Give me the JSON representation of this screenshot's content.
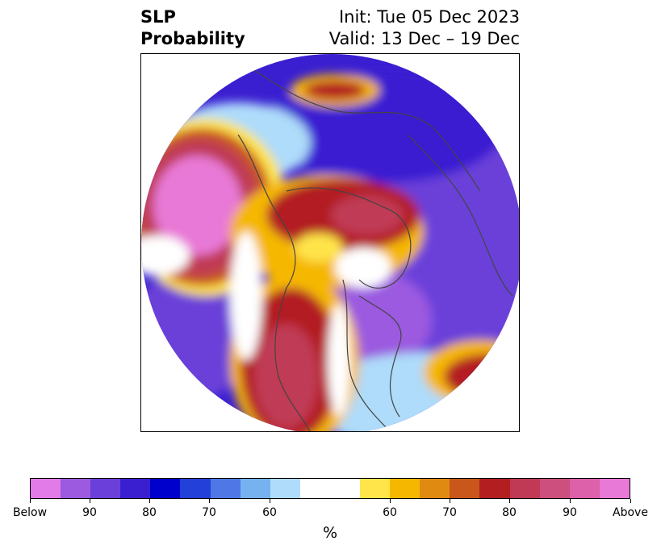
{
  "title": {
    "left_line1": "SLP",
    "left_line2": "Probability",
    "right_line1": "Init: Tue 05 Dec 2023",
    "right_line2": "Valid: 13 Dec – 19 Dec"
  },
  "colorbar": {
    "colors": [
      "#e27be8",
      "#9b5ae0",
      "#6b3fd9",
      "#3a1fd1",
      "#0000cc",
      "#2340d8",
      "#4f77e6",
      "#76b2f0",
      "#aedcfa",
      "#ffffff",
      "#ffffff",
      "#ffe44a",
      "#f5b700",
      "#e08a12",
      "#c9561a",
      "#b31f20",
      "#c03a55",
      "#cd4f7d",
      "#dc60aa",
      "#e879d6"
    ],
    "tick_labels": [
      "Below",
      "90",
      "80",
      "70",
      "60",
      "60",
      "70",
      "80",
      "90",
      "Above"
    ],
    "unit": "%"
  },
  "map": {
    "projection": "north-polar-stereographic",
    "legend_colors": {
      "below_strong": "#9b5ae0",
      "below_core": "#0000cc",
      "below_light": "#76b2f0",
      "neutral": "#ffffff",
      "above_light": "#f5b700",
      "above_mid": "#c9561a",
      "above_core": "#b31f20",
      "above_strong": "#e879d6"
    }
  }
}
